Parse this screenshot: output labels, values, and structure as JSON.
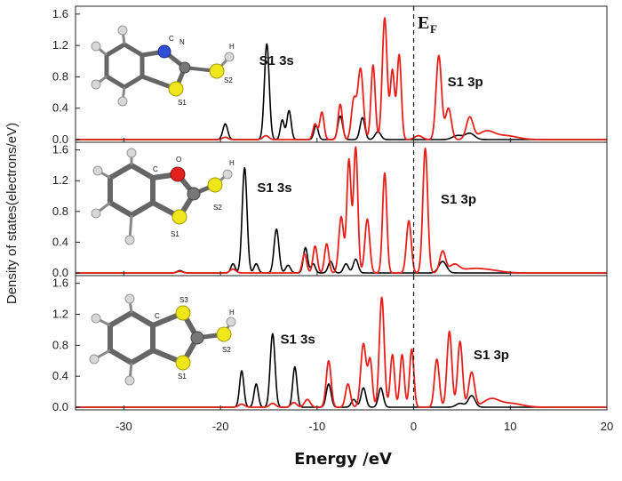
{
  "chart_data": {
    "type": "line",
    "xlabel": "Energy /eV",
    "ylabel": "Density of states(electrons/eV)",
    "xlim": [
      -35,
      20
    ],
    "xticks": [
      -30,
      -20,
      -10,
      0,
      10,
      20
    ],
    "xtick_labels": [
      "-30",
      "-20",
      "-10",
      "0",
      "10",
      "20"
    ],
    "ylim": [
      0,
      1.7
    ],
    "yticks": [
      0.0,
      0.4,
      0.8,
      1.2,
      1.6
    ],
    "ytick_labels": [
      "0.0",
      "0.4",
      "0.8",
      "1.2",
      "1.6"
    ],
    "fermi_label": "E",
    "fermi_sub": "F",
    "fermi_energy": 0,
    "series_colors": {
      "s": "#000000",
      "p": "#e8201c"
    },
    "panels": [
      {
        "molecule": "benzothiazole-2-thiol",
        "labels": [
          {
            "text": "S1 3s",
            "x": -16.0,
            "y": 0.95
          },
          {
            "text": "S1 3p",
            "x": 3.5,
            "y": 0.68
          }
        ],
        "atom_labels": [
          "C",
          "N",
          "H",
          "S2",
          "S1"
        ],
        "series": [
          {
            "name": "S1 3s",
            "color": "#000000",
            "peaks": [
              [
                -19.5,
                0.2,
                0.25
              ],
              [
                -15.2,
                1.22,
                0.25
              ],
              [
                -13.6,
                0.25,
                0.2
              ],
              [
                -12.9,
                0.37,
                0.22
              ],
              [
                -10.1,
                0.18,
                0.22
              ],
              [
                -7.6,
                0.3,
                0.25
              ],
              [
                -5.3,
                0.28,
                0.25
              ],
              [
                -3.7,
                0.1,
                0.3
              ],
              [
                4.5,
                0.05,
                0.5
              ],
              [
                5.8,
                0.08,
                0.5
              ]
            ]
          },
          {
            "name": "S1 3p",
            "color": "#e8201c",
            "peaks": [
              [
                -19.5,
                0.03,
                0.3
              ],
              [
                -15.3,
                0.05,
                0.3
              ],
              [
                -10.2,
                0.2,
                0.22
              ],
              [
                -9.5,
                0.35,
                0.22
              ],
              [
                -7.6,
                0.45,
                0.22
              ],
              [
                -6.2,
                0.5,
                0.25
              ],
              [
                -5.5,
                0.9,
                0.28
              ],
              [
                -4.2,
                0.95,
                0.22
              ],
              [
                -3.0,
                1.55,
                0.25
              ],
              [
                -2.2,
                0.88,
                0.22
              ],
              [
                -1.5,
                1.08,
                0.22
              ],
              [
                0.5,
                0.05,
                0.4
              ],
              [
                2.6,
                1.07,
                0.28
              ],
              [
                3.6,
                0.4,
                0.3
              ],
              [
                5.8,
                0.28,
                0.35
              ],
              [
                7.5,
                0.1,
                0.8
              ],
              [
                9.5,
                0.05,
                1.2
              ]
            ]
          }
        ]
      },
      {
        "molecule": "benzoxazole-2-thiol",
        "labels": [
          {
            "text": "S1 3s",
            "x": -16.2,
            "y": 1.05
          },
          {
            "text": "S1 3p",
            "x": 2.8,
            "y": 0.9
          }
        ],
        "atom_labels": [
          "C",
          "O",
          "H",
          "S2",
          "S1"
        ],
        "series": [
          {
            "name": "S1 3s",
            "color": "#000000",
            "peaks": [
              [
                -24.2,
                0.03,
                0.3
              ],
              [
                -18.7,
                0.12,
                0.22
              ],
              [
                -17.5,
                1.37,
                0.25
              ],
              [
                -16.3,
                0.12,
                0.22
              ],
              [
                -14.2,
                0.57,
                0.25
              ],
              [
                -13.0,
                0.1,
                0.25
              ],
              [
                -11.2,
                0.33,
                0.22
              ],
              [
                -10.4,
                0.12,
                0.22
              ],
              [
                -8.6,
                0.15,
                0.25
              ],
              [
                -7.0,
                0.12,
                0.25
              ],
              [
                -6.0,
                0.18,
                0.25
              ],
              [
                3.0,
                0.15,
                0.4
              ]
            ]
          },
          {
            "name": "S1 3p",
            "color": "#e8201c",
            "peaks": [
              [
                -24.2,
                0.02,
                0.3
              ],
              [
                -18.7,
                0.05,
                0.3
              ],
              [
                -11.3,
                0.25,
                0.22
              ],
              [
                -10.2,
                0.35,
                0.22
              ],
              [
                -9.0,
                0.38,
                0.22
              ],
              [
                -7.5,
                0.73,
                0.25
              ],
              [
                -6.7,
                1.47,
                0.22
              ],
              [
                -6.0,
                1.63,
                0.22
              ],
              [
                -4.8,
                0.7,
                0.25
              ],
              [
                -3.0,
                1.3,
                0.22
              ],
              [
                -0.5,
                0.68,
                0.25
              ],
              [
                1.2,
                1.62,
                0.25
              ],
              [
                3.0,
                0.28,
                0.3
              ],
              [
                4.2,
                0.1,
                0.5
              ],
              [
                6.0,
                0.05,
                1.2
              ],
              [
                8.0,
                0.03,
                1.2
              ]
            ]
          }
        ]
      },
      {
        "molecule": "benzo-1,3-dithiole-2-thiol",
        "labels": [
          {
            "text": "S1 3s",
            "x": -13.8,
            "y": 0.82
          },
          {
            "text": "S1 3p",
            "x": 6.2,
            "y": 0.62
          }
        ],
        "atom_labels": [
          "C",
          "S3",
          "H",
          "S2",
          "S1"
        ],
        "series": [
          {
            "name": "S1 3s",
            "color": "#000000",
            "peaks": [
              [
                -17.8,
                0.47,
                0.22
              ],
              [
                -16.3,
                0.3,
                0.22
              ],
              [
                -14.6,
                0.95,
                0.25
              ],
              [
                -12.3,
                0.52,
                0.22
              ],
              [
                -8.8,
                0.3,
                0.25
              ],
              [
                -6.2,
                0.1,
                0.25
              ],
              [
                -5.2,
                0.25,
                0.25
              ],
              [
                -3.4,
                0.25,
                0.25
              ],
              [
                4.8,
                0.05,
                0.4
              ],
              [
                6.0,
                0.15,
                0.35
              ]
            ]
          },
          {
            "name": "S1 3p",
            "color": "#e8201c",
            "peaks": [
              [
                -17.8,
                0.04,
                0.3
              ],
              [
                -14.6,
                0.05,
                0.3
              ],
              [
                -12.4,
                0.06,
                0.3
              ],
              [
                -11.0,
                0.1,
                0.3
              ],
              [
                -8.8,
                0.6,
                0.25
              ],
              [
                -6.8,
                0.3,
                0.25
              ],
              [
                -5.2,
                0.82,
                0.28
              ],
              [
                -4.5,
                0.6,
                0.22
              ],
              [
                -3.3,
                1.42,
                0.25
              ],
              [
                -2.2,
                0.68,
                0.22
              ],
              [
                -1.2,
                0.68,
                0.22
              ],
              [
                -0.2,
                0.75,
                0.22
              ],
              [
                2.4,
                0.62,
                0.25
              ],
              [
                3.7,
                0.98,
                0.25
              ],
              [
                4.8,
                0.85,
                0.25
              ],
              [
                6.0,
                0.45,
                0.3
              ],
              [
                8.0,
                0.1,
                0.8
              ],
              [
                10.0,
                0.05,
                1.2
              ]
            ]
          }
        ]
      }
    ]
  }
}
